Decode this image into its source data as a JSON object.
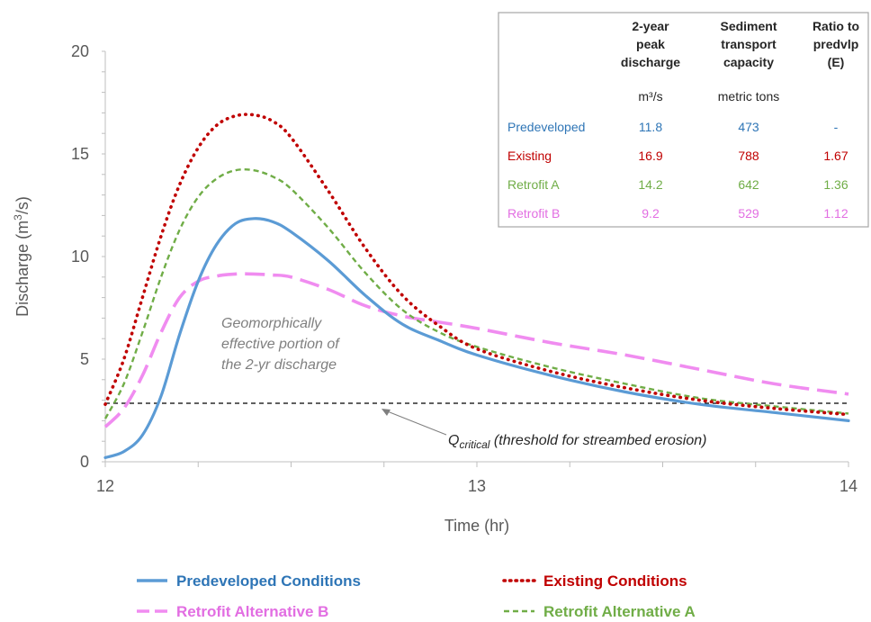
{
  "chart_data": {
    "type": "line",
    "xlabel": "Time (hr)",
    "ylabel_main": "Discharge (m",
    "ylabel_sup": "3",
    "ylabel_end": "/s)",
    "xlim": [
      12,
      14
    ],
    "ylim": [
      0,
      20
    ],
    "x_ticks": [
      "12",
      "13",
      "14"
    ],
    "y_ticks": [
      "0",
      "5",
      "10",
      "15",
      "20"
    ],
    "colors": {
      "predeveloped": "#5b9bd5",
      "existing": "#c00000",
      "retrofit_a": "#70ad47",
      "retrofit_b": "#f08cf0",
      "threshold": "#000000"
    },
    "series": [
      {
        "key": "predeveloped",
        "name": "Predeveloped Conditions",
        "style": "solid",
        "x": [
          12.0,
          12.05,
          12.1,
          12.15,
          12.2,
          12.25,
          12.3,
          12.35,
          12.4,
          12.45,
          12.5,
          12.6,
          12.7,
          12.8,
          12.9,
          13.0,
          13.2,
          13.4,
          13.6,
          13.8,
          14.0
        ],
        "y": [
          0.2,
          0.5,
          1.3,
          3.2,
          6.2,
          8.8,
          10.6,
          11.6,
          11.85,
          11.7,
          11.2,
          9.8,
          8.1,
          6.7,
          5.9,
          5.2,
          4.2,
          3.4,
          2.8,
          2.4,
          2.0
        ]
      },
      {
        "key": "existing",
        "name": "Existing Conditions",
        "style": "dotted",
        "x": [
          12.0,
          12.05,
          12.1,
          12.15,
          12.2,
          12.25,
          12.3,
          12.35,
          12.4,
          12.45,
          12.5,
          12.6,
          12.7,
          12.8,
          12.9,
          13.0,
          13.2,
          13.4,
          13.6,
          13.8,
          14.0
        ],
        "y": [
          2.8,
          5.0,
          8.0,
          11.0,
          13.5,
          15.3,
          16.4,
          16.85,
          16.9,
          16.6,
          15.8,
          13.2,
          10.4,
          8.1,
          6.6,
          5.5,
          4.4,
          3.6,
          3.0,
          2.6,
          2.3
        ]
      },
      {
        "key": "retrofit_a",
        "name": "Retrofit Alternative A",
        "style": "dashed",
        "x": [
          12.0,
          12.05,
          12.1,
          12.15,
          12.2,
          12.25,
          12.3,
          12.35,
          12.4,
          12.45,
          12.5,
          12.6,
          12.7,
          12.8,
          12.9,
          13.0,
          13.2,
          13.4,
          13.6,
          13.8,
          14.0
        ],
        "y": [
          2.1,
          3.8,
          6.3,
          9.0,
          11.3,
          12.9,
          13.8,
          14.2,
          14.2,
          13.9,
          13.3,
          11.4,
          9.2,
          7.4,
          6.3,
          5.6,
          4.6,
          3.8,
          3.1,
          2.7,
          2.35
        ]
      },
      {
        "key": "retrofit_b",
        "name": "Retrofit Alternative B",
        "style": "long-dash",
        "x": [
          12.0,
          12.05,
          12.1,
          12.15,
          12.2,
          12.25,
          12.3,
          12.35,
          12.4,
          12.45,
          12.5,
          12.6,
          12.7,
          12.8,
          12.9,
          13.0,
          13.2,
          13.4,
          13.6,
          13.8,
          14.0
        ],
        "y": [
          1.7,
          2.6,
          4.2,
          6.3,
          8.0,
          8.8,
          9.05,
          9.15,
          9.15,
          9.1,
          9.0,
          8.4,
          7.6,
          7.1,
          6.8,
          6.5,
          5.8,
          5.2,
          4.5,
          3.8,
          3.3
        ]
      }
    ],
    "threshold": {
      "y": 2.85,
      "label_main": "Q",
      "label_sub": "critical",
      "label_rest": " (threshold for streambed erosion)"
    },
    "annotation": {
      "lines": [
        "Geomorphically",
        "effective portion of",
        "the 2-yr discharge"
      ]
    },
    "table": {
      "headers": [
        [
          "2-year",
          "peak",
          "discharge"
        ],
        [
          "Sediment",
          "transport",
          "capacity"
        ],
        [
          "Ratio to",
          "predvlp",
          "(E)"
        ]
      ],
      "units": [
        "m³/s",
        "metric tons",
        ""
      ],
      "rows": [
        {
          "label": "Predeveloped",
          "key": "predeveloped",
          "values": [
            "11.8",
            "473",
            "-"
          ]
        },
        {
          "label": "Existing",
          "key": "existing",
          "values": [
            "16.9",
            "788",
            "1.67"
          ]
        },
        {
          "label": "Retrofit A",
          "key": "retrofit_a",
          "values": [
            "14.2",
            "642",
            "1.36"
          ]
        },
        {
          "label": "Retrofit B",
          "key": "retrofit_b",
          "values": [
            "9.2",
            "529",
            "1.12"
          ]
        }
      ]
    },
    "legend_position": "bottom",
    "legend": [
      "Predeveloped Conditions",
      "Existing Conditions",
      "Retrofit Alternative B",
      "Retrofit Alternative A"
    ]
  }
}
